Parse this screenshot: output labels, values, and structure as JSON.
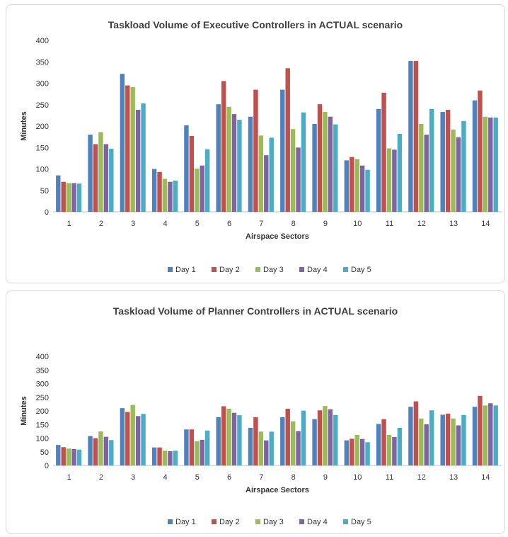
{
  "colors": {
    "Day 1": "#4F81BD",
    "Day 2": "#C0504D",
    "Day 3": "#9BBB59",
    "Day 4": "#8064A2",
    "Day 5": "#4BACC6"
  },
  "chart_data": [
    {
      "type": "bar",
      "title": "Taskload Volume of Executive Controllers in ACTUAL scenario",
      "xlabel": "Airspace Sectors",
      "ylabel": "Minutes",
      "ylim": [
        0,
        400
      ],
      "yticks": [
        "0",
        "50",
        "100",
        "150",
        "200",
        "250",
        "300",
        "350",
        "400"
      ],
      "grid": false,
      "legend": "bottom",
      "categories": [
        "1",
        "2",
        "3",
        "4",
        "5",
        "6",
        "7",
        "8",
        "9",
        "10",
        "11",
        "12",
        "13",
        "14"
      ],
      "series": [
        {
          "name": "Day 1",
          "values": [
            85,
            180,
            322,
            100,
            202,
            251,
            222,
            285,
            205,
            120,
            240,
            352,
            233,
            260
          ]
        },
        {
          "name": "Day 2",
          "values": [
            70,
            158,
            295,
            93,
            177,
            305,
            285,
            335,
            251,
            128,
            278,
            352,
            238,
            283
          ]
        },
        {
          "name": "Day 3",
          "values": [
            67,
            186,
            291,
            77,
            101,
            245,
            178,
            193,
            233,
            123,
            148,
            205,
            192,
            222
          ]
        },
        {
          "name": "Day 4",
          "values": [
            67,
            158,
            238,
            70,
            108,
            228,
            132,
            150,
            222,
            108,
            145,
            180,
            174,
            220
          ]
        },
        {
          "name": "Day 5",
          "values": [
            66,
            147,
            253,
            73,
            146,
            215,
            173,
            232,
            204,
            98,
            182,
            240,
            212,
            220
          ]
        }
      ]
    },
    {
      "type": "bar",
      "title": "Taskload Volume of Planner Controllers in ACTUAL scenario",
      "xlabel": "Airspace Sectors",
      "ylabel": "Minutes",
      "ylim": [
        0,
        400
      ],
      "yticks": [
        "0",
        "50",
        "100",
        "150",
        "200",
        "250",
        "300",
        "350",
        "400"
      ],
      "grid": false,
      "legend": "bottom",
      "categories": [
        "1",
        "2",
        "3",
        "4",
        "5",
        "6",
        "7",
        "8",
        "9",
        "10",
        "11",
        "12",
        "13",
        "14"
      ],
      "series": [
        {
          "name": "Day 1",
          "values": [
            75,
            108,
            210,
            66,
            132,
            177,
            138,
            177,
            170,
            92,
            152,
            215,
            186,
            215
          ]
        },
        {
          "name": "Day 2",
          "values": [
            67,
            100,
            196,
            66,
            132,
            217,
            177,
            208,
            202,
            98,
            170,
            235,
            190,
            255
          ]
        },
        {
          "name": "Day 3",
          "values": [
            62,
            125,
            222,
            54,
            89,
            208,
            124,
            162,
            218,
            112,
            112,
            172,
            172,
            220
          ]
        },
        {
          "name": "Day 4",
          "values": [
            60,
            105,
            181,
            52,
            94,
            193,
            92,
            126,
            206,
            97,
            104,
            151,
            147,
            228
          ]
        },
        {
          "name": "Day 5",
          "values": [
            58,
            93,
            189,
            54,
            128,
            184,
            124,
            201,
            185,
            85,
            138,
            202,
            185,
            220
          ]
        }
      ]
    }
  ]
}
